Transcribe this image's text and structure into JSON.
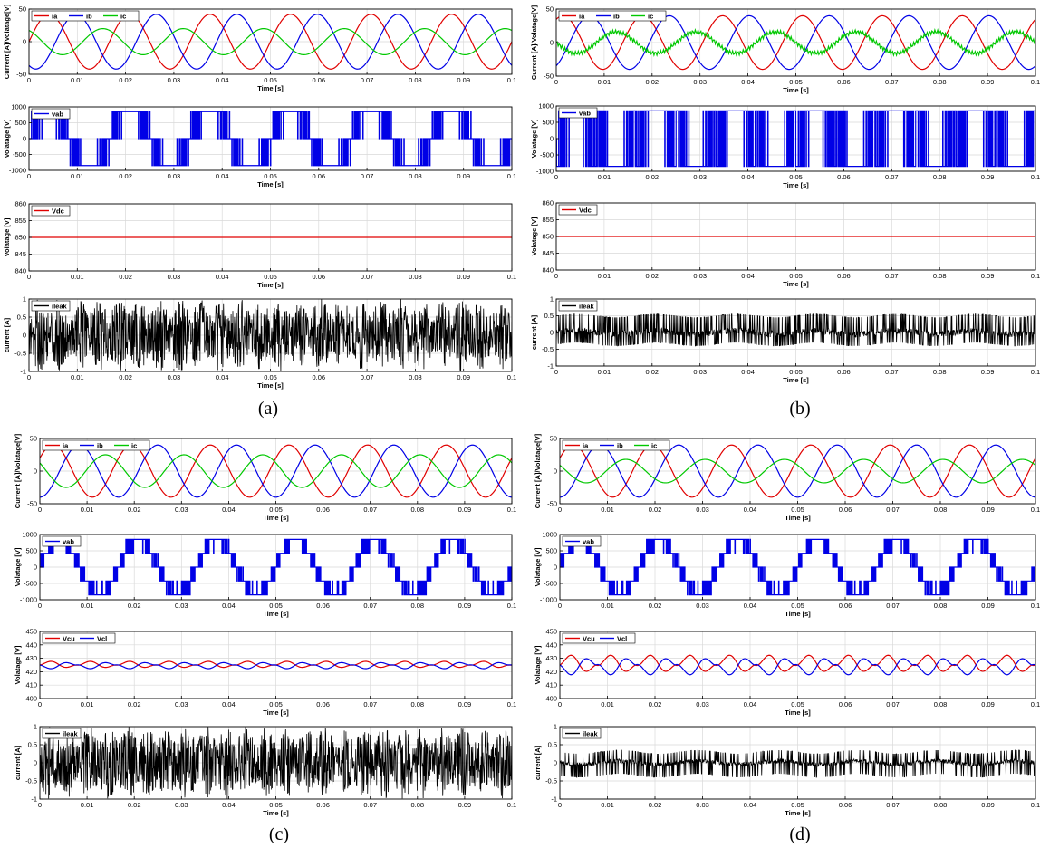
{
  "colors": {
    "red": "#e00000",
    "blue": "#0000e6",
    "green": "#00c800",
    "black": "#000000",
    "grid": "#d9d9d9"
  },
  "captions": [
    "(a)",
    "(b)",
    "(c)",
    "(d)"
  ],
  "chart_data": [
    {
      "panel": "(a)",
      "subplot": 1,
      "type": "line",
      "xlabel": "Time [s]",
      "ylabel": "Current [A]/Volatage[V]",
      "xlim": [
        0,
        0.1
      ],
      "ylim": [
        -50,
        50
      ],
      "xticks": [
        0,
        0.01,
        0.02,
        0.03,
        0.04,
        0.05,
        0.06,
        0.07,
        0.08,
        0.09,
        0.1
      ],
      "yticks": [
        -50,
        0,
        50
      ],
      "grid": true,
      "legend": "top-left, horizontal",
      "series": [
        {
          "name": "ia",
          "color": "red",
          "kind": "sine",
          "amplitude": 42,
          "frequency_hz": 60,
          "phase_deg": 0
        },
        {
          "name": "ib",
          "color": "blue",
          "kind": "sine",
          "amplitude": 42,
          "frequency_hz": 60,
          "phase_deg": -120
        },
        {
          "name": "ic",
          "color": "green",
          "kind": "sine",
          "amplitude": 20,
          "frequency_hz": 60,
          "phase_deg": 120
        }
      ]
    },
    {
      "panel": "(a)",
      "subplot": 2,
      "type": "line",
      "xlabel": "Time [s]",
      "ylabel": "Volatage [V]",
      "xlim": [
        0,
        0.1
      ],
      "ylim": [
        -1000,
        1000
      ],
      "xticks": [
        0,
        0.01,
        0.02,
        0.03,
        0.04,
        0.05,
        0.06,
        0.07,
        0.08,
        0.09,
        0.1
      ],
      "yticks": [
        -1000,
        -500,
        0,
        500,
        1000
      ],
      "grid": true,
      "legend": "top-left",
      "series": [
        {
          "name": "vab",
          "color": "blue",
          "kind": "pwm",
          "levels": [
            850
          ],
          "frequency_hz": 60,
          "description": "two-level PWM between 0 and ±850 V"
        }
      ]
    },
    {
      "panel": "(a)",
      "subplot": 3,
      "type": "line",
      "xlabel": "Time [s]",
      "ylabel": "Volatage [V]",
      "xlim": [
        0,
        0.1
      ],
      "ylim": [
        840,
        860
      ],
      "xticks": [
        0,
        0.01,
        0.02,
        0.03,
        0.04,
        0.05,
        0.06,
        0.07,
        0.08,
        0.09,
        0.1
      ],
      "yticks": [
        840,
        845,
        850,
        855,
        860
      ],
      "grid": true,
      "legend": "top-left",
      "series": [
        {
          "name": "Vdc",
          "color": "red",
          "kind": "constant",
          "value": 850
        }
      ]
    },
    {
      "panel": "(a)",
      "subplot": 4,
      "type": "line",
      "xlabel": "Time [s]",
      "ylabel": "current [A]",
      "xlim": [
        0,
        0.1
      ],
      "ylim": [
        -1,
        1
      ],
      "xticks": [
        0,
        0.01,
        0.02,
        0.03,
        0.04,
        0.05,
        0.06,
        0.07,
        0.08,
        0.09,
        0.1
      ],
      "yticks": [
        -1,
        -0.5,
        0,
        0.5,
        1
      ],
      "grid": true,
      "legend": "top-left",
      "series": [
        {
          "name": "ileak",
          "color": "black",
          "kind": "noise",
          "peak": 1.0,
          "description": "high-frequency leakage current, clipped at ±1 A"
        }
      ]
    },
    {
      "panel": "(b)",
      "subplot": 1,
      "type": "line",
      "xlabel": "Time [s]",
      "ylabel": "Current [A]/Volatage[V]",
      "xlim": [
        0,
        0.1
      ],
      "ylim": [
        -50,
        50
      ],
      "xticks": [
        0,
        0.01,
        0.02,
        0.03,
        0.04,
        0.05,
        0.06,
        0.07,
        0.08,
        0.09,
        0.1
      ],
      "yticks": [
        -50,
        0,
        50
      ],
      "grid": true,
      "legend": "top-left, horizontal",
      "series": [
        {
          "name": "ia",
          "color": "red",
          "kind": "sine",
          "amplitude": 40,
          "frequency_hz": 60,
          "phase_deg": 60
        },
        {
          "name": "ib",
          "color": "blue",
          "kind": "sine",
          "amplitude": 40,
          "frequency_hz": 60,
          "phase_deg": -60
        },
        {
          "name": "ic",
          "color": "green",
          "kind": "sine",
          "amplitude": 16,
          "frequency_hz": 60,
          "phase_deg": 180,
          "ripple": 3
        }
      ]
    },
    {
      "panel": "(b)",
      "subplot": 2,
      "type": "line",
      "xlabel": "Time [s]",
      "ylabel": "Volatage [V]",
      "xlim": [
        0,
        0.1
      ],
      "ylim": [
        -1000,
        1000
      ],
      "xticks": [
        0,
        0.01,
        0.02,
        0.03,
        0.04,
        0.05,
        0.06,
        0.07,
        0.08,
        0.09,
        0.1
      ],
      "yticks": [
        -1000,
        -500,
        0,
        500,
        1000
      ],
      "grid": true,
      "legend": "top-left",
      "series": [
        {
          "name": "vab",
          "color": "blue",
          "kind": "pwm",
          "levels": [
            850
          ],
          "frequency_hz": 60,
          "description": "PWM switching between +850 and -850 V"
        }
      ]
    },
    {
      "panel": "(b)",
      "subplot": 3,
      "type": "line",
      "xlabel": "Time [s]",
      "ylabel": "Volatage [V]",
      "xlim": [
        0,
        0.1
      ],
      "ylim": [
        840,
        860
      ],
      "xticks": [
        0,
        0.01,
        0.02,
        0.03,
        0.04,
        0.05,
        0.06,
        0.07,
        0.08,
        0.09,
        0.1
      ],
      "yticks": [
        840,
        845,
        850,
        855,
        860
      ],
      "grid": true,
      "legend": "top-left",
      "series": [
        {
          "name": "Vdc",
          "color": "red",
          "kind": "constant",
          "value": 850
        }
      ]
    },
    {
      "panel": "(b)",
      "subplot": 4,
      "type": "line",
      "xlabel": "Time [s]",
      "ylabel": "current [A]",
      "xlim": [
        0,
        0.1
      ],
      "ylim": [
        -1,
        1
      ],
      "xticks": [
        0,
        0.01,
        0.02,
        0.03,
        0.04,
        0.05,
        0.06,
        0.07,
        0.08,
        0.09,
        0.1
      ],
      "yticks": [
        -1,
        -0.5,
        0,
        0.5,
        1
      ],
      "grid": true,
      "legend": "top-left",
      "series": [
        {
          "name": "ileak",
          "color": "black",
          "kind": "noise",
          "peak": 0.5,
          "description": "leakage current spikes between about -0.4 and 0.55 A"
        }
      ]
    },
    {
      "panel": "(c)",
      "subplot": 1,
      "type": "line",
      "xlabel": "Time [s]",
      "ylabel": "Current [A]/Volatage[V]",
      "xlim": [
        0,
        0.1
      ],
      "ylim": [
        -50,
        50
      ],
      "xticks": [
        0,
        0.01,
        0.02,
        0.03,
        0.04,
        0.05,
        0.06,
        0.07,
        0.08,
        0.09,
        0.1
      ],
      "yticks": [
        -50,
        0,
        50
      ],
      "grid": true,
      "legend": "top-left, horizontal",
      "series": [
        {
          "name": "ia",
          "color": "red",
          "kind": "sine",
          "amplitude": 40,
          "frequency_hz": 60,
          "phase_deg": 30
        },
        {
          "name": "ib",
          "color": "blue",
          "kind": "sine",
          "amplitude": 40,
          "frequency_hz": 60,
          "phase_deg": -90
        },
        {
          "name": "ic",
          "color": "green",
          "kind": "sine",
          "amplitude": 25,
          "frequency_hz": 60,
          "phase_deg": 150
        }
      ]
    },
    {
      "panel": "(c)",
      "subplot": 2,
      "type": "line",
      "xlabel": "Time [s]",
      "ylabel": "Volatage [V]",
      "xlim": [
        0,
        0.1
      ],
      "ylim": [
        -1000,
        1000
      ],
      "xticks": [
        0,
        0.01,
        0.02,
        0.03,
        0.04,
        0.05,
        0.06,
        0.07,
        0.08,
        0.09,
        0.1
      ],
      "yticks": [
        -1000,
        -500,
        0,
        500,
        1000
      ],
      "grid": true,
      "legend": "top-left",
      "series": [
        {
          "name": "vab",
          "color": "blue",
          "kind": "multilevel",
          "levels": [
            -850,
            -425,
            0,
            425,
            850
          ],
          "frequency_hz": 60,
          "description": "five-level staircase PWM"
        }
      ]
    },
    {
      "panel": "(c)",
      "subplot": 3,
      "type": "line",
      "xlabel": "Time [s]",
      "ylabel": "Volatage [V]",
      "xlim": [
        0,
        0.1
      ],
      "ylim": [
        400,
        450
      ],
      "xticks": [
        0,
        0.01,
        0.02,
        0.03,
        0.04,
        0.05,
        0.06,
        0.07,
        0.08,
        0.09,
        0.1
      ],
      "yticks": [
        400,
        410,
        420,
        430,
        440,
        450
      ],
      "grid": true,
      "legend": "top-left, horizontal",
      "series": [
        {
          "name": "Vcu",
          "color": "red",
          "kind": "ripple",
          "mean": 425,
          "amplitude": 3,
          "frequency_hz": 120
        },
        {
          "name": "Vcl",
          "color": "blue",
          "kind": "ripple",
          "mean": 425,
          "amplitude": -3,
          "frequency_hz": 120
        }
      ]
    },
    {
      "panel": "(c)",
      "subplot": 4,
      "type": "line",
      "xlabel": "Time [s]",
      "ylabel": "current [A]",
      "xlim": [
        0,
        0.1
      ],
      "ylim": [
        -1,
        1
      ],
      "xticks": [
        0,
        0.01,
        0.02,
        0.03,
        0.04,
        0.05,
        0.06,
        0.07,
        0.08,
        0.09,
        0.1
      ],
      "yticks": [
        -1,
        -0.5,
        0,
        0.5,
        1
      ],
      "grid": true,
      "legend": "top-left",
      "series": [
        {
          "name": "ileak",
          "color": "black",
          "kind": "noise",
          "peak": 1.0,
          "description": "large leakage current oscillation reaching ±1 A"
        }
      ]
    },
    {
      "panel": "(d)",
      "subplot": 1,
      "type": "line",
      "xlabel": "Time [s]",
      "ylabel": "Current [A]/Volatage[V]",
      "xlim": [
        0,
        0.1
      ],
      "ylim": [
        -50,
        50
      ],
      "xticks": [
        0,
        0.01,
        0.02,
        0.03,
        0.04,
        0.05,
        0.06,
        0.07,
        0.08,
        0.09,
        0.1
      ],
      "yticks": [
        -50,
        0,
        50
      ],
      "grid": true,
      "legend": "top-left, horizontal",
      "series": [
        {
          "name": "ia",
          "color": "red",
          "kind": "sine",
          "amplitude": 40,
          "frequency_hz": 60,
          "phase_deg": 30
        },
        {
          "name": "ib",
          "color": "blue",
          "kind": "sine",
          "amplitude": 40,
          "frequency_hz": 60,
          "phase_deg": -90
        },
        {
          "name": "ic",
          "color": "green",
          "kind": "sine",
          "amplitude": 18,
          "frequency_hz": 60,
          "phase_deg": 150
        }
      ]
    },
    {
      "panel": "(d)",
      "subplot": 2,
      "type": "line",
      "xlabel": "Time [s]",
      "ylabel": "Volatage [V]",
      "xlim": [
        0,
        0.1
      ],
      "ylim": [
        -1000,
        1000
      ],
      "xticks": [
        0,
        0.01,
        0.02,
        0.03,
        0.04,
        0.05,
        0.06,
        0.07,
        0.08,
        0.09,
        0.1
      ],
      "yticks": [
        -1000,
        -500,
        0,
        500,
        1000
      ],
      "grid": true,
      "legend": "top-left",
      "series": [
        {
          "name": "vab",
          "color": "blue",
          "kind": "multilevel",
          "levels": [
            -850,
            -425,
            0,
            425,
            850
          ],
          "frequency_hz": 60,
          "description": "five-level staircase PWM"
        }
      ]
    },
    {
      "panel": "(d)",
      "subplot": 3,
      "type": "line",
      "xlabel": "Time [s]",
      "ylabel": "Volatage [V]",
      "xlim": [
        0,
        0.1
      ],
      "ylim": [
        400,
        450
      ],
      "xticks": [
        0,
        0.01,
        0.02,
        0.03,
        0.04,
        0.05,
        0.06,
        0.07,
        0.08,
        0.09,
        0.1
      ],
      "yticks": [
        400,
        410,
        420,
        430,
        440,
        450
      ],
      "grid": true,
      "legend": "top-left, horizontal",
      "series": [
        {
          "name": "Vcu",
          "color": "red",
          "kind": "ripple",
          "mean": 425,
          "amplitude": 8,
          "frequency_hz": 120
        },
        {
          "name": "Vcl",
          "color": "blue",
          "kind": "ripple",
          "mean": 425,
          "amplitude": -8,
          "frequency_hz": 120
        }
      ]
    },
    {
      "panel": "(d)",
      "subplot": 4,
      "type": "line",
      "xlabel": "Time [s]",
      "ylabel": "current [A]",
      "xlim": [
        0,
        0.1
      ],
      "ylim": [
        -1,
        1
      ],
      "xticks": [
        0,
        0.01,
        0.02,
        0.03,
        0.04,
        0.05,
        0.06,
        0.07,
        0.08,
        0.09,
        0.1
      ],
      "yticks": [
        -1,
        -0.5,
        0,
        0.5,
        1
      ],
      "grid": true,
      "legend": "top-left",
      "series": [
        {
          "name": "ileak",
          "color": "black",
          "kind": "noise",
          "peak": 0.35,
          "description": "small leakage current spikes between about -0.4 and 0.35 A"
        }
      ]
    }
  ]
}
